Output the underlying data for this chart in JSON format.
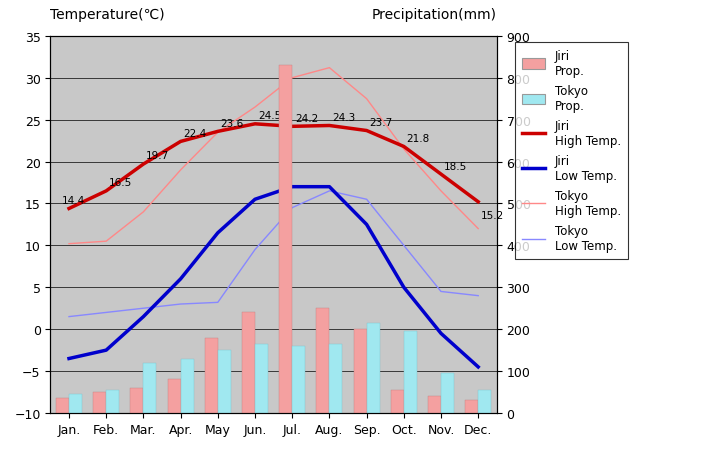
{
  "months": [
    "Jan.",
    "Feb.",
    "Mar.",
    "Apr.",
    "May",
    "Jun.",
    "Jul.",
    "Aug.",
    "Sep.",
    "Oct.",
    "Nov.",
    "Dec."
  ],
  "jiri_high_temp": [
    14.4,
    16.5,
    19.7,
    22.4,
    23.6,
    24.5,
    24.2,
    24.3,
    23.7,
    21.8,
    18.5,
    15.2
  ],
  "jiri_low_temp": [
    -3.5,
    -2.5,
    1.5,
    6.0,
    11.5,
    15.5,
    17.0,
    17.0,
    12.5,
    5.0,
    -0.5,
    -4.5
  ],
  "tokyo_high_temp": [
    10.2,
    10.5,
    14.0,
    19.0,
    23.5,
    26.5,
    30.0,
    31.2,
    27.5,
    21.5,
    16.5,
    12.0
  ],
  "tokyo_low_temp": [
    1.5,
    2.0,
    2.5,
    3.0,
    3.2,
    9.5,
    14.5,
    16.5,
    15.5,
    10.0,
    4.5,
    4.0
  ],
  "jiri_precip_mm": [
    35,
    50,
    60,
    80,
    180,
    240,
    830,
    250,
    200,
    55,
    40,
    30
  ],
  "tokyo_precip_mm": [
    45,
    55,
    120,
    130,
    150,
    165,
    160,
    165,
    215,
    195,
    95,
    55
  ],
  "plot_bg_color": "#c8c8c8",
  "jiri_bar_color": "#f4a0a0",
  "tokyo_bar_color": "#a0e8f0",
  "jiri_high_color": "#cc0000",
  "jiri_low_color": "#0000cc",
  "tokyo_high_color": "#ff8888",
  "tokyo_low_color": "#8888ff",
  "title_left": "Temperature(℃)",
  "title_right": "Precipitation(mm)",
  "ylim_temp": [
    -10,
    35
  ],
  "ylim_precip": [
    0,
    900
  ],
  "yticks_temp": [
    -10,
    -5,
    0,
    5,
    10,
    15,
    20,
    25,
    30,
    35
  ],
  "yticks_precip": [
    0,
    100,
    200,
    300,
    400,
    500,
    600,
    700,
    800,
    900
  ]
}
